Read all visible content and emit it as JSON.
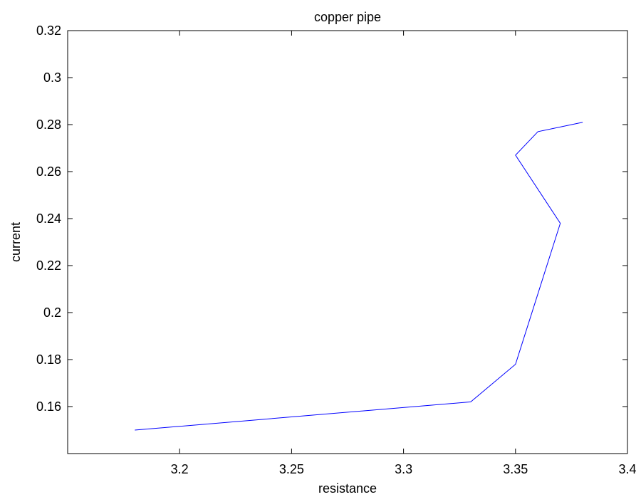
{
  "chart_data": {
    "type": "line",
    "title": "copper pipe",
    "xlabel": "resistance",
    "ylabel": "current",
    "x": [
      3.18,
      3.33,
      3.35,
      3.37,
      3.35,
      3.36,
      3.38
    ],
    "series": [
      {
        "name": "current",
        "color": "#0000ff",
        "values": [
          0.15,
          0.162,
          0.178,
          0.238,
          0.267,
          0.277,
          0.281
        ]
      }
    ],
    "xlim": [
      3.15,
      3.4
    ],
    "xticks": [
      3.2,
      3.25,
      3.3,
      3.35,
      3.4
    ],
    "ylim": [
      0.14,
      0.32
    ],
    "yticks": [
      0.16,
      0.18,
      0.2,
      0.22,
      0.24,
      0.26,
      0.28,
      0.3,
      0.32
    ]
  }
}
